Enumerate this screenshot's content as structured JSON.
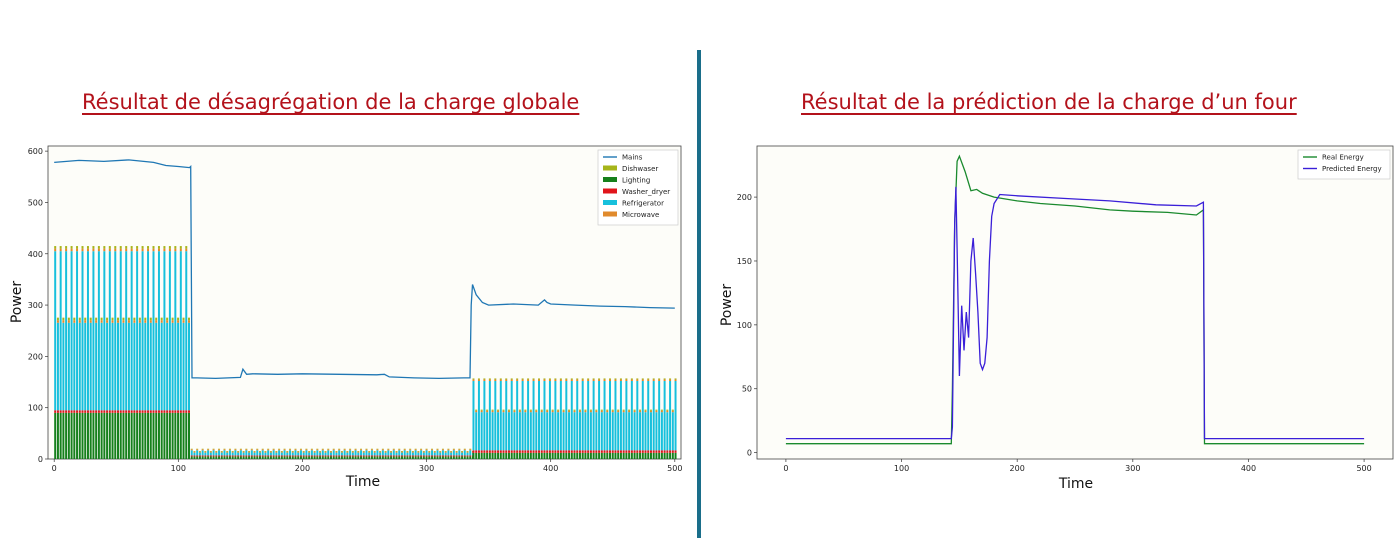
{
  "slide": {
    "title_left": "Résultat de désagrégation de la charge globale",
    "title_right": "Résultat de la prédiction de la charge d’un four"
  },
  "chart_data": [
    {
      "type": "bar",
      "xlabel": "Time",
      "ylabel": "Power",
      "xlim": [
        -5,
        505
      ],
      "ylim": [
        0,
        610
      ],
      "xticks": [
        0,
        100,
        200,
        300,
        400,
        500
      ],
      "yticks": [
        0,
        100,
        200,
        300,
        400,
        500,
        600
      ],
      "grid": false,
      "legend_position": "top-right",
      "colors": {
        "Mains": "#1f77b4",
        "Dishwaser": "#a6b51a",
        "Lighting": "#16801c",
        "Washer_dryer": "#e0141b",
        "Refrigerator": "#17c0dc",
        "Microwave": "#e08a2c"
      },
      "mains_line": {
        "name": "Mains",
        "x": [
          0,
          20,
          40,
          60,
          80,
          90,
          100,
          109,
          110,
          111,
          115,
          130,
          150,
          152,
          155,
          160,
          180,
          200,
          230,
          260,
          266,
          270,
          290,
          310,
          330,
          335,
          336,
          337,
          340,
          345,
          350,
          370,
          390,
          395,
          397,
          400,
          420,
          440,
          460,
          480,
          500
        ],
        "y": [
          578,
          582,
          580,
          583,
          578,
          572,
          570,
          568,
          570,
          158,
          158,
          157,
          159,
          175,
          165,
          166,
          165,
          166,
          165,
          164,
          165,
          160,
          158,
          157,
          158,
          158,
          300,
          340,
          320,
          305,
          300,
          302,
          300,
          310,
          305,
          302,
          300,
          298,
          297,
          295,
          294
        ]
      },
      "stack_segments": [
        {
          "x_range": [
            0,
            110
          ],
          "Lighting": 90,
          "Washer_dryer": 5,
          "Refrigerator": 310,
          "Microwave": 5,
          "Dishwaser": 5
        },
        {
          "x_range": [
            110,
            337
          ],
          "Lighting": 5,
          "Washer_dryer": 2,
          "Refrigerator": 10,
          "Microwave": 2,
          "Dishwaser": 1
        },
        {
          "x_range": [
            337,
            500
          ],
          "Lighting": 12,
          "Washer_dryer": 5,
          "Refrigerator": 135,
          "Microwave": 3,
          "Dishwaser": 2
        }
      ]
    },
    {
      "type": "line",
      "xlabel": "Time",
      "ylabel": "Power",
      "xlim": [
        -25,
        525
      ],
      "ylim": [
        -5,
        240
      ],
      "xticks": [
        0,
        100,
        200,
        300,
        400,
        500
      ],
      "yticks": [
        0,
        50,
        100,
        150,
        200
      ],
      "grid": false,
      "legend_position": "top-right",
      "series": [
        {
          "name": "Real Energy",
          "color": "#1a8a2e",
          "x": [
            0,
            50,
            100,
            143,
            144,
            146,
            148,
            150,
            155,
            160,
            165,
            170,
            180,
            200,
            220,
            250,
            280,
            300,
            330,
            355,
            361,
            362,
            363,
            380,
            420,
            460,
            500
          ],
          "y": [
            7,
            7,
            7,
            7,
            50,
            180,
            228,
            232,
            220,
            205,
            206,
            203,
            200,
            197,
            195,
            193,
            190,
            189,
            188,
            186,
            190,
            7,
            7,
            7,
            7,
            7,
            7
          ]
        },
        {
          "name": "Predicted Energy",
          "color": "#3a1fd8",
          "x": [
            0,
            50,
            100,
            143,
            144,
            146,
            147,
            148,
            150,
            152,
            154,
            156,
            158,
            160,
            162,
            164,
            166,
            168,
            170,
            172,
            174,
            176,
            178,
            180,
            185,
            200,
            240,
            280,
            320,
            355,
            361,
            362,
            363,
            380,
            420,
            460,
            500
          ],
          "y": [
            11,
            11,
            11,
            11,
            20,
            180,
            208,
            160,
            60,
            115,
            80,
            110,
            90,
            150,
            168,
            140,
            110,
            70,
            65,
            70,
            90,
            150,
            185,
            195,
            202,
            201,
            199,
            197,
            194,
            193,
            196,
            11,
            11,
            11,
            11,
            11,
            11
          ]
        }
      ]
    }
  ]
}
